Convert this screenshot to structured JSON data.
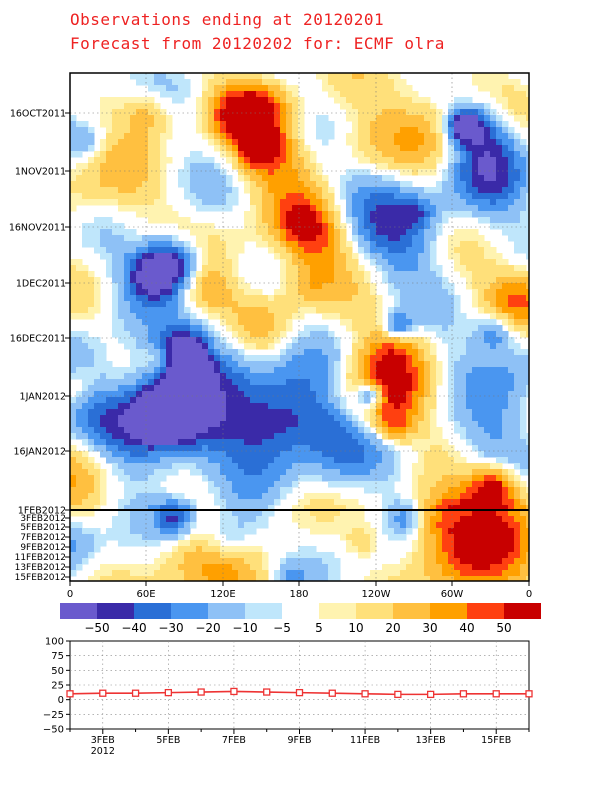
{
  "header": {
    "title_line1": "Observations ending at 20120201",
    "title_line2": "Forecast from 20120202 for: ECMF olra"
  },
  "hovmoller": {
    "obs_time_labels": [
      "16OCT2011",
      "1NOV2011",
      "16NOV2011",
      "1DEC2011",
      "16DEC2011",
      "1JAN2012",
      "16JAN2012",
      "1FEB2012"
    ],
    "fc_time_labels": [
      "3FEB2012",
      "5FEB2012",
      "7FEB2012",
      "9FEB2012",
      "11FEB2012",
      "13FEB2012",
      "15FEB2012"
    ],
    "lon_labels": [
      "0",
      "60E",
      "120E",
      "180",
      "120W",
      "60W",
      "0"
    ],
    "note": "time-longitude anomaly field; cell values approximated by colour"
  },
  "colorbar": {
    "colors": [
      "#6a5acd",
      "#3a2aa8",
      "#2a6fd6",
      "#4a96f0",
      "#8ec1f6",
      "#bfe6fb",
      "#ffffff",
      "#fff3b0",
      "#ffe07a",
      "#ffc040",
      "#ffa000",
      "#ff4010",
      "#c80000"
    ],
    "labels": [
      "-50",
      "-40",
      "-30",
      "-20",
      "-10",
      "-5",
      "5",
      "10",
      "20",
      "30",
      "40",
      "50"
    ]
  },
  "chart_data": {
    "type": "line",
    "x": [
      "2FEB",
      "3FEB",
      "4FEB",
      "5FEB",
      "6FEB",
      "7FEB",
      "8FEB",
      "9FEB",
      "10FEB",
      "11FEB",
      "12FEB",
      "13FEB",
      "14FEB",
      "15FEB",
      "16FEB"
    ],
    "series": [
      {
        "values": [
          10,
          11,
          11,
          12,
          13,
          14,
          13,
          12,
          11,
          10,
          9,
          9,
          10,
          10,
          10
        ],
        "color": "#ee3333"
      }
    ],
    "xtick_labels": [
      "3FEB",
      "5FEB",
      "7FEB",
      "9FEB",
      "11FEB",
      "13FEB",
      "15FEB"
    ],
    "year_label": "2012",
    "ytick_labels": [
      "100",
      "75",
      "50",
      "25",
      "0",
      "-25",
      "-50"
    ],
    "ylim": [
      -50,
      100
    ],
    "grid": true
  }
}
